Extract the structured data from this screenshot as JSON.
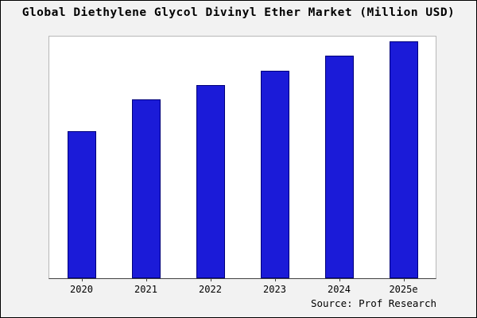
{
  "chart_data": {
    "type": "bar",
    "title": "Global Diethylene Glycol Divinyl Ether Market (Million USD)",
    "categories": [
      "2020",
      "2021",
      "2022",
      "2023",
      "2024",
      "2025e"
    ],
    "values": [
      61,
      74,
      80,
      86,
      92,
      98
    ],
    "xlabel": "",
    "ylabel": "",
    "ylim": [
      0,
      100
    ],
    "grid": false,
    "legend": false,
    "bar_color": "#1b1bd8",
    "bar_border_color": "#00007a"
  },
  "source": "Source: Prof Research",
  "colors": {
    "background": "#f2f2f2",
    "plot_background": "#ffffff",
    "frame_border": "#000000"
  }
}
